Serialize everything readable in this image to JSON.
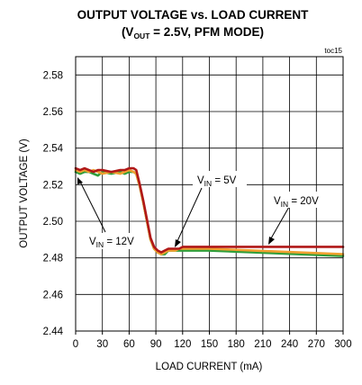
{
  "chart_data": {
    "type": "line",
    "title_line1": "OUTPUT VOLTAGE vs. LOAD CURRENT",
    "title_line2_prefix": "(V",
    "title_line2_sub": "OUT",
    "title_line2_suffix": " = 2.5V, PFM MODE)",
    "figure_id": "toc15",
    "xlabel": "LOAD CURRENT (mA)",
    "ylabel": "OUTPUT VOLTAGE (V)",
    "xlim": [
      0,
      300
    ],
    "ylim": [
      2.44,
      2.59
    ],
    "x_ticks": [
      0,
      30,
      60,
      90,
      120,
      150,
      180,
      210,
      240,
      270,
      300
    ],
    "y_ticks": [
      2.44,
      2.46,
      2.48,
      2.5,
      2.52,
      2.54,
      2.56,
      2.58
    ],
    "y_tick_labels": [
      "2.44",
      "2.46",
      "2.48",
      "2.50",
      "2.52",
      "2.54",
      "2.56",
      "2.58"
    ],
    "grid": true,
    "series": [
      {
        "name": "VIN = 12V",
        "color": "#2e9e3a",
        "x": [
          0,
          5,
          10,
          15,
          20,
          25,
          30,
          40,
          50,
          55,
          60,
          65,
          68,
          72,
          76,
          80,
          84,
          88,
          92,
          96,
          100,
          104,
          108,
          112,
          116,
          120,
          150,
          200,
          250,
          300
        ],
        "y": [
          2.527,
          2.526,
          2.527,
          2.527,
          2.526,
          2.525,
          2.527,
          2.526,
          2.527,
          2.526,
          2.527,
          2.527,
          2.526,
          2.519,
          2.51,
          2.5,
          2.49,
          2.485,
          2.483,
          2.482,
          2.482,
          2.484,
          2.484,
          2.484,
          2.484,
          2.484,
          2.484,
          2.483,
          2.482,
          2.481
        ]
      },
      {
        "name": "VIN = 5V",
        "color": "#f0a030",
        "x": [
          0,
          5,
          10,
          15,
          20,
          25,
          30,
          40,
          50,
          55,
          60,
          65,
          68,
          72,
          76,
          80,
          84,
          88,
          92,
          96,
          100,
          104,
          108,
          112,
          116,
          120,
          150,
          200,
          250,
          300
        ],
        "y": [
          2.528,
          2.527,
          2.528,
          2.527,
          2.528,
          2.527,
          2.526,
          2.527,
          2.526,
          2.527,
          2.528,
          2.527,
          2.526,
          2.519,
          2.51,
          2.5,
          2.49,
          2.485,
          2.483,
          2.482,
          2.483,
          2.484,
          2.484,
          2.484,
          2.485,
          2.485,
          2.485,
          2.484,
          2.483,
          2.482
        ]
      },
      {
        "name": "VIN = 20V",
        "color": "#b01818",
        "x": [
          0,
          5,
          10,
          15,
          20,
          25,
          30,
          40,
          50,
          55,
          60,
          65,
          68,
          72,
          76,
          80,
          84,
          88,
          92,
          96,
          100,
          104,
          108,
          112,
          116,
          120,
          150,
          200,
          250,
          300
        ],
        "y": [
          2.529,
          2.528,
          2.529,
          2.528,
          2.527,
          2.528,
          2.528,
          2.527,
          2.528,
          2.528,
          2.529,
          2.529,
          2.528,
          2.52,
          2.511,
          2.501,
          2.491,
          2.486,
          2.484,
          2.483,
          2.484,
          2.485,
          2.485,
          2.485,
          2.485,
          2.486,
          2.486,
          2.486,
          2.486,
          2.486
        ]
      }
    ],
    "annotations": [
      {
        "series": 0,
        "main": "V",
        "sub": "IN",
        "suffix": " = 12V",
        "point_x": 1,
        "point_y": 2.527
      },
      {
        "series": 1,
        "main": "V",
        "sub": "IN",
        "suffix": " = 5V",
        "point_x": 112,
        "point_y": 2.485
      },
      {
        "series": 2,
        "main": "V",
        "sub": "IN",
        "suffix": " = 20V",
        "point_x": 262,
        "point_y": 2.486
      }
    ]
  }
}
